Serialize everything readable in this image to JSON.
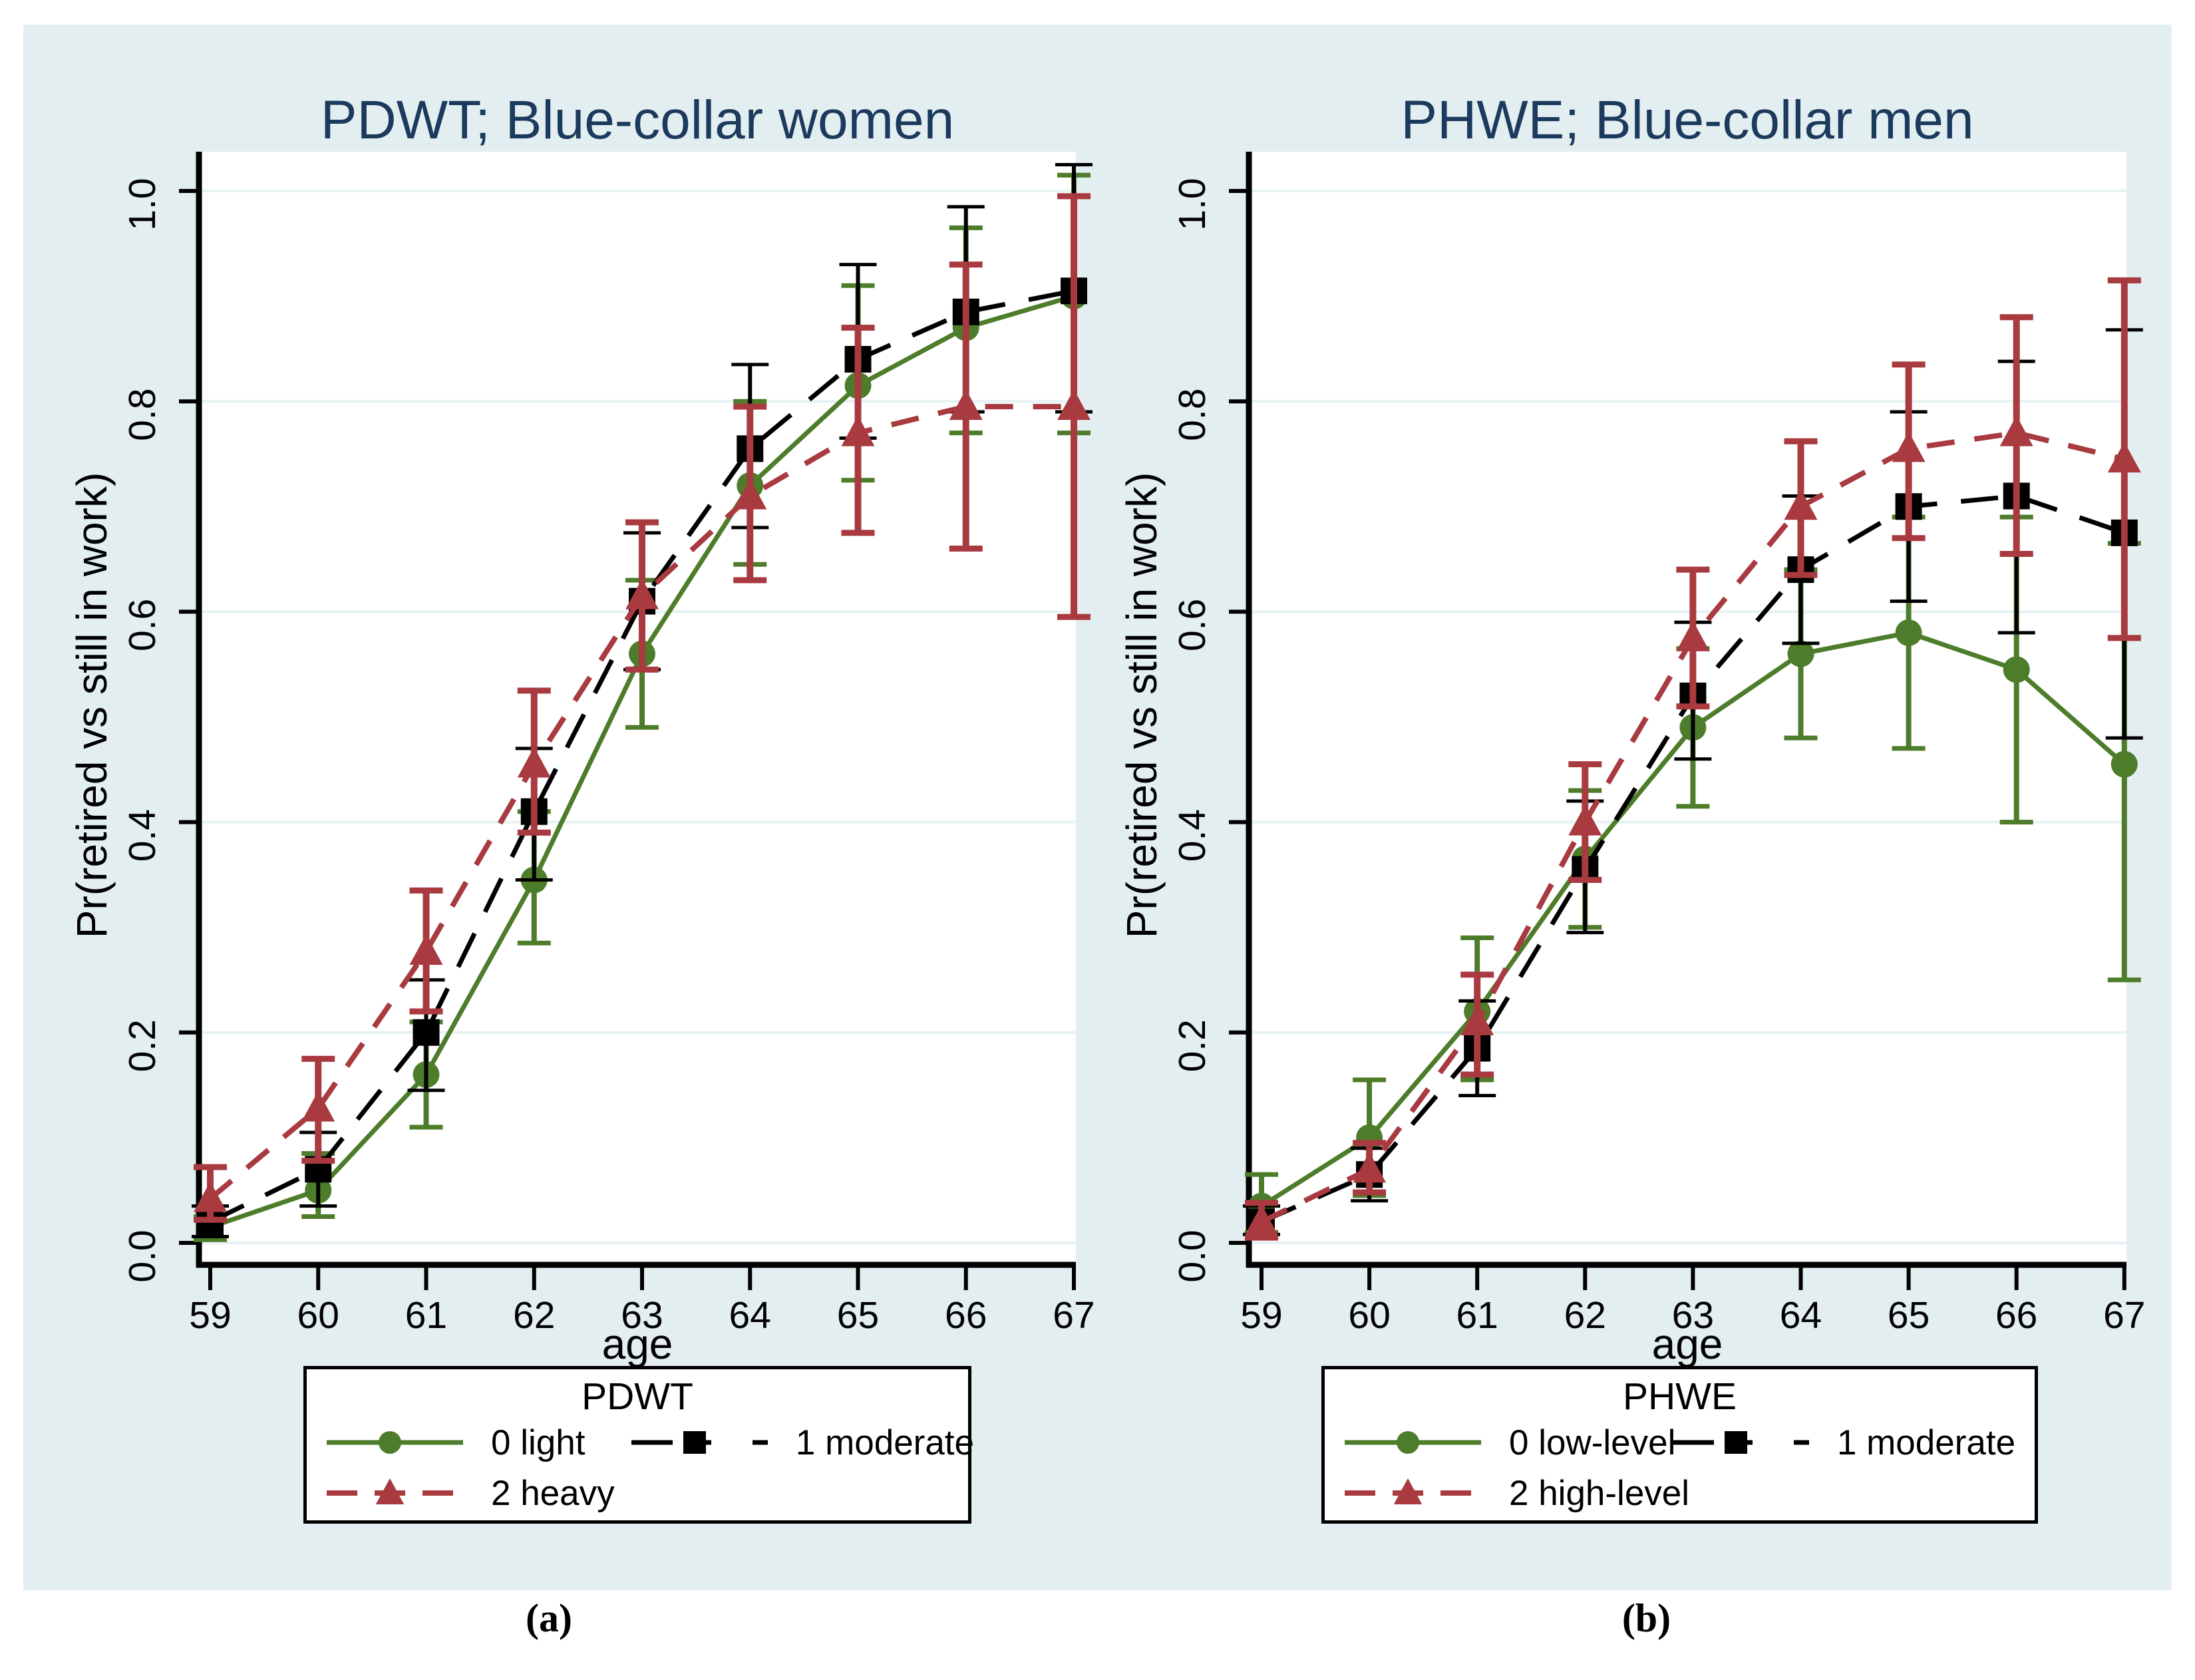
{
  "figure": {
    "background_color": "#e3eef0",
    "plot_background": "#ffffff",
    "gridline_color": "#e6f2f3",
    "title_color": "#1b3a5e",
    "label_a": "(a)",
    "label_b": "(b)"
  },
  "chart_data": [
    {
      "type": "line",
      "title": "PDWT; Blue-collar women",
      "xlabel": "age",
      "ylabel": "Pr(retired vs still in work)",
      "legend_title": "PDWT",
      "legend_position": "below",
      "grid": true,
      "x": [
        59,
        60,
        61,
        62,
        63,
        64,
        65,
        66,
        67
      ],
      "ylim": [
        0.0,
        1.04
      ],
      "yticks": [
        0.0,
        0.2,
        0.4,
        0.6,
        0.8,
        1.0
      ],
      "series": [
        {
          "name": "0 light",
          "color": "#4d7c2a",
          "marker": "circle",
          "line_style": "solid",
          "values": [
            0.015,
            0.05,
            0.16,
            0.345,
            0.56,
            0.72,
            0.815,
            0.87,
            0.9
          ],
          "ci_low": [
            0.003,
            0.025,
            0.11,
            0.285,
            0.49,
            0.645,
            0.725,
            0.77,
            0.77
          ],
          "ci_high": [
            0.025,
            0.085,
            0.21,
            0.41,
            0.63,
            0.8,
            0.91,
            0.965,
            1.015
          ]
        },
        {
          "name": "1 moderate",
          "color": "#000000",
          "marker": "square",
          "line_style": "long-dash",
          "values": [
            0.02,
            0.07,
            0.2,
            0.41,
            0.61,
            0.755,
            0.84,
            0.885,
            0.905
          ],
          "ci_low": [
            0.006,
            0.035,
            0.145,
            0.345,
            0.545,
            0.68,
            0.765,
            0.79,
            0.79
          ],
          "ci_high": [
            0.035,
            0.105,
            0.25,
            0.47,
            0.675,
            0.835,
            0.93,
            0.985,
            1.025
          ]
        },
        {
          "name": "2 heavy",
          "color": "#a83a40",
          "marker": "triangle",
          "line_style": "dash",
          "values": [
            0.042,
            0.128,
            0.277,
            0.455,
            0.615,
            0.71,
            0.77,
            0.795,
            0.795
          ],
          "ci_low": [
            0.022,
            0.078,
            0.22,
            0.39,
            0.545,
            0.63,
            0.675,
            0.66,
            0.595
          ],
          "ci_high": [
            0.072,
            0.175,
            0.335,
            0.525,
            0.685,
            0.795,
            0.87,
            0.93,
            0.995
          ]
        }
      ]
    },
    {
      "type": "line",
      "title": "PHWE; Blue-collar men",
      "xlabel": "age",
      "ylabel": "Pr(retired vs still in work)",
      "legend_title": "PHWE",
      "legend_position": "below",
      "grid": true,
      "x": [
        59,
        60,
        61,
        62,
        63,
        64,
        65,
        66,
        67
      ],
      "ylim": [
        0.0,
        1.04
      ],
      "yticks": [
        0.0,
        0.2,
        0.4,
        0.6,
        0.8,
        1.0
      ],
      "series": [
        {
          "name": "0 low-level",
          "color": "#4d7c2a",
          "marker": "circle",
          "line_style": "solid",
          "values": [
            0.035,
            0.1,
            0.22,
            0.365,
            0.49,
            0.56,
            0.58,
            0.545,
            0.455
          ],
          "ci_low": [
            0.01,
            0.045,
            0.155,
            0.3,
            0.415,
            0.48,
            0.47,
            0.4,
            0.25
          ],
          "ci_high": [
            0.065,
            0.155,
            0.29,
            0.43,
            0.565,
            0.64,
            0.69,
            0.69,
            0.665
          ]
        },
        {
          "name": "1 moderate",
          "color": "#000000",
          "marker": "square",
          "line_style": "long-dash",
          "values": [
            0.02,
            0.065,
            0.185,
            0.355,
            0.52,
            0.64,
            0.7,
            0.71,
            0.675
          ],
          "ci_low": [
            0.008,
            0.04,
            0.14,
            0.295,
            0.46,
            0.57,
            0.61,
            0.58,
            0.48
          ],
          "ci_high": [
            0.035,
            0.09,
            0.23,
            0.42,
            0.59,
            0.71,
            0.79,
            0.838,
            0.868
          ]
        },
        {
          "name": "2 high-level",
          "color": "#a83a40",
          "marker": "triangle",
          "line_style": "dash",
          "values": [
            0.02,
            0.07,
            0.21,
            0.4,
            0.575,
            0.7,
            0.755,
            0.77,
            0.745
          ],
          "ci_low": [
            0.005,
            0.048,
            0.16,
            0.345,
            0.51,
            0.635,
            0.67,
            0.655,
            0.575
          ],
          "ci_high": [
            0.038,
            0.095,
            0.255,
            0.455,
            0.64,
            0.762,
            0.835,
            0.88,
            0.915
          ]
        }
      ]
    }
  ]
}
